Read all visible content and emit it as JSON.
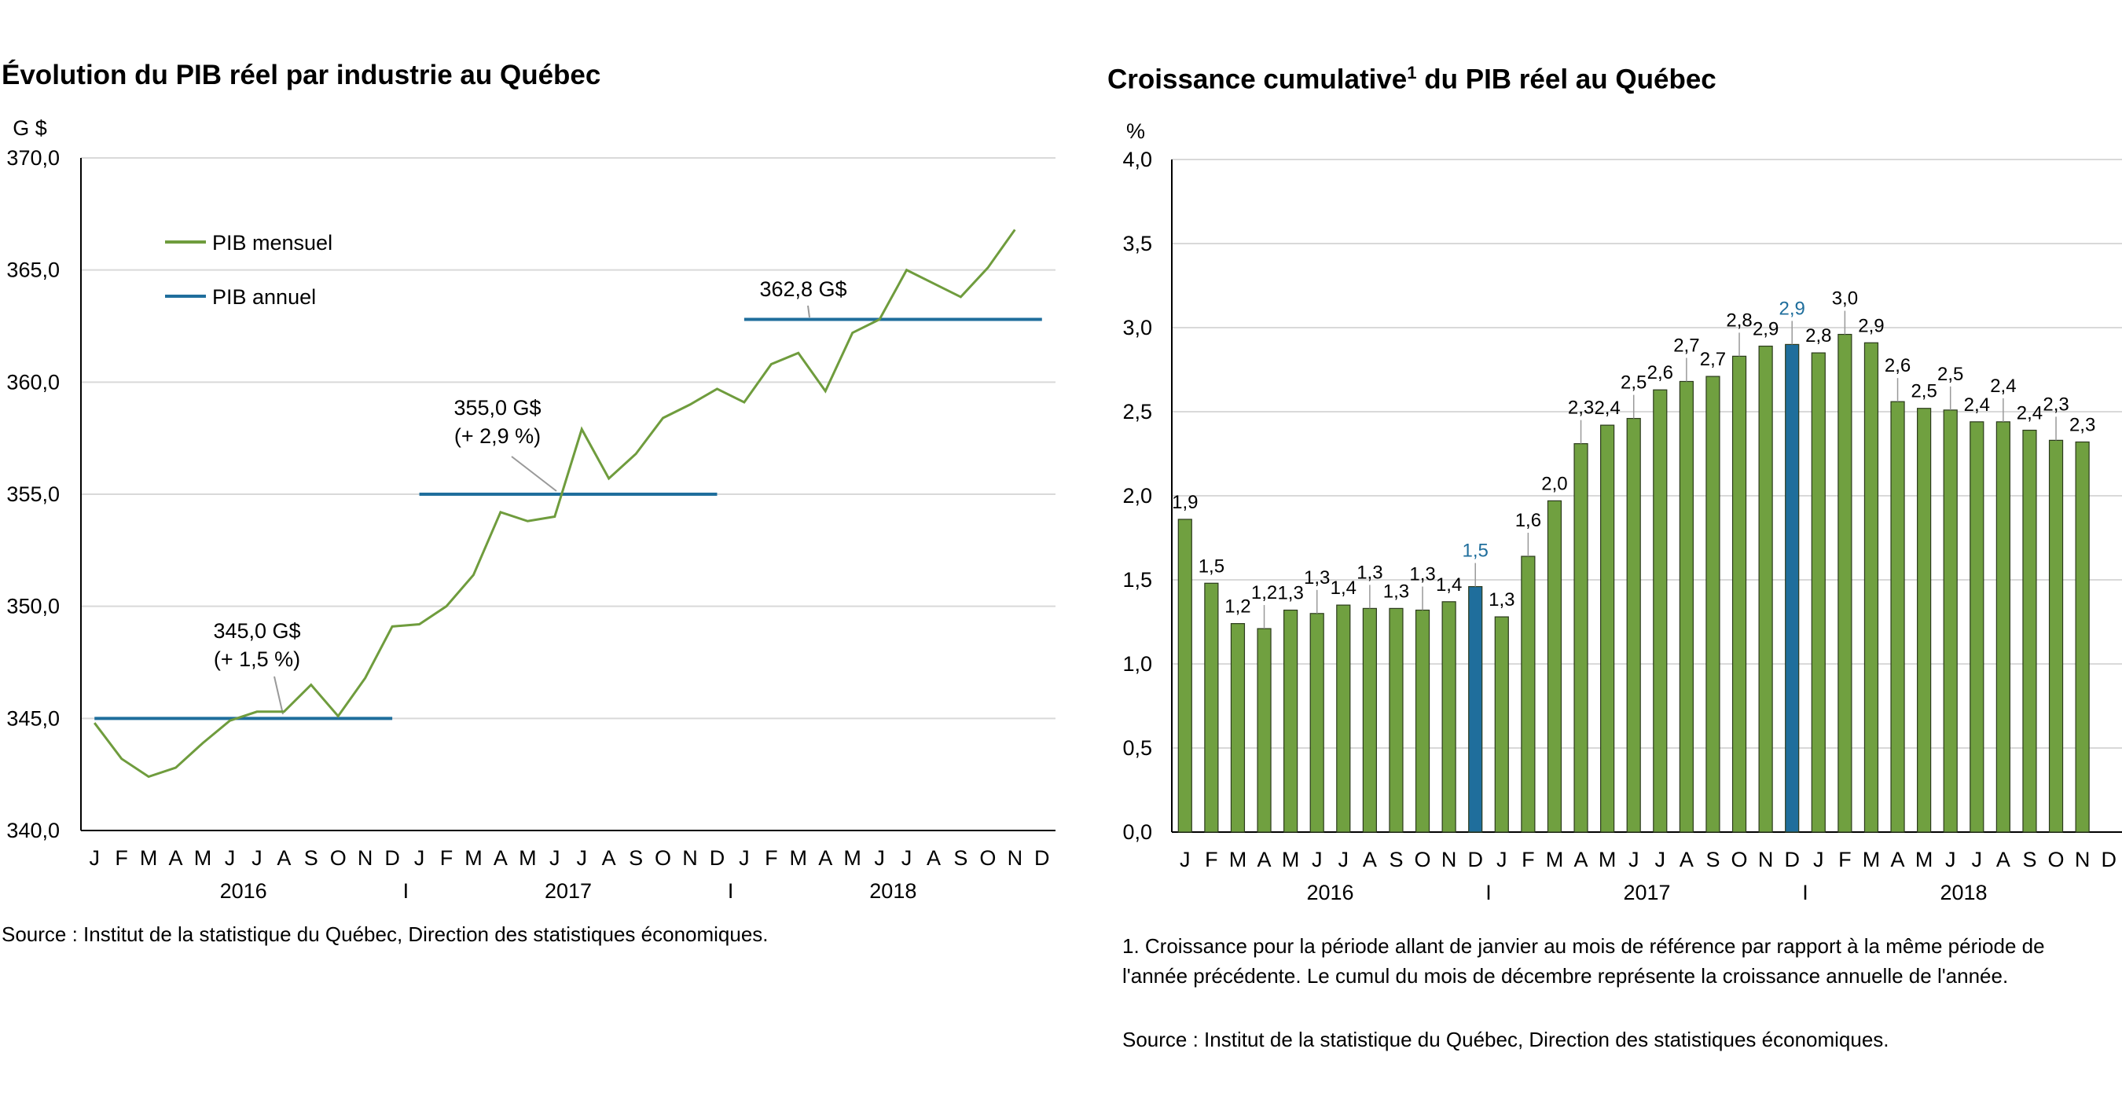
{
  "left": {
    "title": "Évolution du PIB réel par industrie au Québec",
    "source": "Source : Institut de la statistique du Québec, Direction des statistiques économiques."
  },
  "right": {
    "title": "Croissance cumulative",
    "title_sup": "1",
    "title_rest": " du PIB réel au Québec",
    "footnote": "1. Croissance pour la période allant de janvier au mois de référence par rapport à la même période de l'année précédente. Le cumul du mois de décembre représente la croissance annuelle de l'année.",
    "source": "Source : Institut de la statistique du Québec, Direction des statistiques économiques."
  },
  "chart_data": [
    {
      "type": "line",
      "ylabel": "G $",
      "ylim": [
        340,
        370
      ],
      "yticks": [
        "340,0",
        "345,0",
        "350,0",
        "355,0",
        "360,0",
        "365,0",
        "370,0"
      ],
      "grid": true,
      "legend_placement": "top-left",
      "month_labels": [
        "J",
        "F",
        "M",
        "A",
        "M",
        "J",
        "J",
        "A",
        "S",
        "O",
        "N",
        "D",
        "J",
        "F",
        "M",
        "A",
        "M",
        "J",
        "J",
        "A",
        "S",
        "O",
        "N",
        "D",
        "J",
        "F",
        "M",
        "A",
        "M",
        "J",
        "J",
        "A",
        "S",
        "O",
        "N",
        "D"
      ],
      "year_labels": [
        "2016",
        "2017",
        "2018"
      ],
      "year_separator": "I",
      "series": [
        {
          "name": "PIB mensuel",
          "color": "#6f9c3d",
          "values": [
            344.8,
            343.2,
            342.4,
            342.8,
            343.9,
            344.9,
            345.3,
            345.3,
            346.5,
            345.1,
            346.8,
            349.1,
            349.2,
            350.0,
            351.4,
            354.2,
            353.8,
            354.0,
            357.9,
            355.7,
            356.8,
            358.4,
            359.0,
            359.7,
            359.1,
            360.8,
            361.3,
            359.6,
            362.2,
            362.8,
            365.0,
            364.4,
            363.8,
            365.1,
            366.8
          ]
        },
        {
          "name": "PIB annuel",
          "color": "#1f6e9c",
          "segments": [
            {
              "year": "2016",
              "value": 345.0,
              "label": [
                "345,0 G$",
                "(+ 1,5 %)"
              ]
            },
            {
              "year": "2017",
              "value": 355.0,
              "label": [
                "355,0 G$",
                "(+ 2,9 %)"
              ]
            },
            {
              "year": "2018",
              "value": 362.8,
              "label": [
                "362,8 G$"
              ]
            }
          ]
        }
      ]
    },
    {
      "type": "bar",
      "ylabel": "%",
      "ylim": [
        0,
        4
      ],
      "yticks": [
        "0,0",
        "0,5",
        "1,0",
        "1,5",
        "2,0",
        "2,5",
        "3,0",
        "3,5",
        "4,0"
      ],
      "grid": true,
      "month_labels": [
        "J",
        "F",
        "M",
        "A",
        "M",
        "J",
        "J",
        "A",
        "S",
        "O",
        "N",
        "D",
        "J",
        "F",
        "M",
        "A",
        "M",
        "J",
        "J",
        "A",
        "S",
        "O",
        "N",
        "D",
        "J",
        "F",
        "M",
        "A",
        "M",
        "J",
        "J",
        "A",
        "S",
        "O",
        "N",
        "D"
      ],
      "year_labels": [
        "2016",
        "2017",
        "2018"
      ],
      "year_separator": "I",
      "colors": {
        "month": "#70a040",
        "december": "#1f6e9c"
      },
      "values": [
        1.86,
        1.48,
        1.24,
        1.21,
        1.32,
        1.3,
        1.35,
        1.33,
        1.33,
        1.32,
        1.37,
        1.46,
        1.28,
        1.64,
        1.97,
        2.31,
        2.42,
        2.46,
        2.63,
        2.68,
        2.71,
        2.83,
        2.89,
        2.9,
        2.85,
        2.96,
        2.91,
        2.56,
        2.52,
        2.51,
        2.44,
        2.44,
        2.39,
        2.33,
        2.32
      ],
      "data_labels": [
        "1,9",
        "1,5",
        "1,2",
        "1,2",
        "1,3",
        "1,3",
        "1,4",
        "1,3",
        "1,3",
        "1,3",
        "1,4",
        "1,5",
        "1,3",
        "1,6",
        "2,0",
        "2,3",
        "2,4",
        "2,5",
        "2,6",
        "2,7",
        "2,7",
        "2,8",
        "2,9",
        "2,9",
        "2,8",
        "3,0",
        "2,9",
        "2,6",
        "2,5",
        "2,5",
        "2,4",
        "2,4",
        "2,4",
        "2,3",
        "2,3"
      ],
      "highlighted": [
        "D 2016",
        "D 2017"
      ]
    }
  ]
}
